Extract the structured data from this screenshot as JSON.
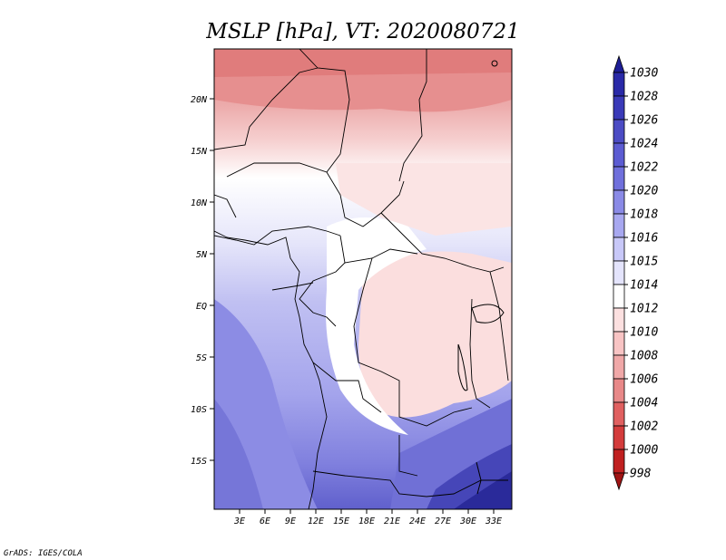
{
  "title": "MSLP [hPa], VT: 2020080721",
  "credit": "GrADS: IGES/COLA",
  "lat_labels": [
    "20N",
    "15N",
    "10N",
    "5N",
    "EQ",
    "5S",
    "10S",
    "15S"
  ],
  "lon_labels": [
    "3E",
    "6E",
    "9E",
    "12E",
    "15E",
    "18E",
    "21E",
    "24E",
    "27E",
    "30E",
    "33E"
  ],
  "colorbar": {
    "labels": [
      "1030",
      "1028",
      "1026",
      "1024",
      "1022",
      "1020",
      "1018",
      "1016",
      "1015",
      "1014",
      "1012",
      "1010",
      "1008",
      "1006",
      "1004",
      "1002",
      "1000",
      "998"
    ],
    "colors": [
      "#1e1e96",
      "#2a2aa8",
      "#3a3ab8",
      "#4c4cc4",
      "#5c5cd2",
      "#7070dc",
      "#8a8ae6",
      "#a8a8f0",
      "#c8c8f8",
      "#e4e4fc",
      "#ffffff",
      "#fce0e0",
      "#f8c4c4",
      "#f0a8a8",
      "#e88888",
      "#e06060",
      "#d43c3c",
      "#c02020",
      "#a01414"
    ]
  },
  "map": {
    "region": "Central Africa",
    "lon_range": [
      0,
      35
    ],
    "lat_range": [
      -19,
      24
    ]
  }
}
